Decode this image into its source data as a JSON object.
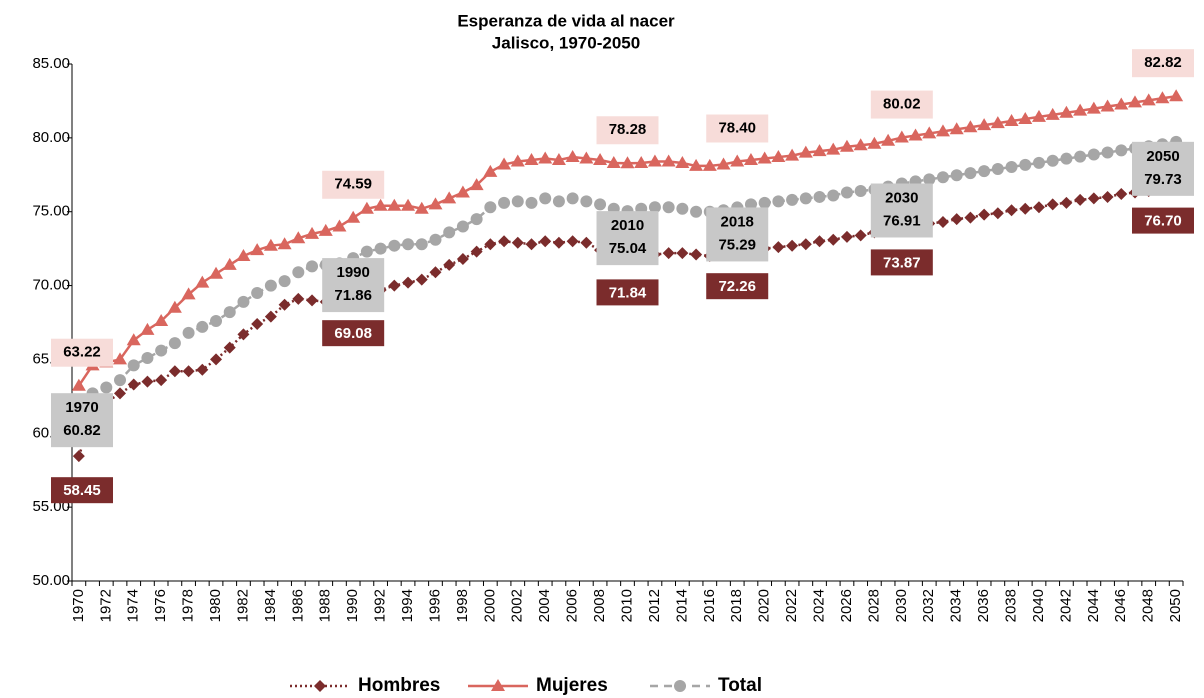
{
  "chart_data": {
    "type": "line",
    "title": "Esperanza de vida al nacer",
    "subtitle": "Jalisco, 1970-2050",
    "categories": [
      "1970",
      null,
      "1972",
      null,
      "1974",
      null,
      "1976",
      null,
      "1978",
      null,
      "1980",
      null,
      "1982",
      null,
      "1984",
      null,
      "1986",
      null,
      "1988",
      null,
      "1990",
      null,
      "1992",
      null,
      "1994",
      null,
      "1996",
      null,
      "1998",
      null,
      "2000",
      null,
      "2002",
      null,
      "2004",
      null,
      "2006",
      null,
      "2008",
      null,
      "2010",
      null,
      "2012",
      null,
      "2014",
      null,
      "2016",
      null,
      "2018",
      null,
      "2020",
      null,
      "2022",
      null,
      "2024",
      null,
      "2026",
      null,
      "2028",
      null,
      "2030",
      null,
      "2032",
      null,
      "2034",
      null,
      "2036",
      null,
      "2038",
      null,
      "2040",
      null,
      "2042",
      null,
      "2044",
      null,
      "2046",
      null,
      "2048",
      null,
      "2050"
    ],
    "ylim": [
      50,
      85
    ],
    "yticks": [
      {
        "value": 50,
        "label": "50.00"
      },
      {
        "value": 55,
        "label": "55.00"
      },
      {
        "value": 60,
        "label": "60.00"
      },
      {
        "value": 65,
        "label": "65.00"
      },
      {
        "value": 70,
        "label": "70.00"
      },
      {
        "value": 75,
        "label": "75.00"
      },
      {
        "value": 80,
        "label": "80.00"
      },
      {
        "value": 85,
        "label": "85.00"
      }
    ],
    "grid": false,
    "legend": "bottom",
    "series": [
      {
        "name": "Hombres",
        "color": "#7b2c2c",
        "marker": "diamond",
        "line": "dotted",
        "values": [
          58.45,
          61.3,
          62.1,
          62.7,
          63.3,
          63.5,
          63.6,
          64.2,
          64.2,
          64.3,
          65.0,
          65.8,
          66.7,
          67.4,
          67.9,
          68.7,
          69.1,
          69.0,
          68.9,
          68.9,
          69.08,
          69.6,
          69.7,
          70.0,
          70.2,
          70.4,
          70.9,
          71.4,
          71.8,
          72.3,
          72.8,
          73.0,
          72.9,
          72.8,
          73.0,
          72.9,
          73.0,
          72.9,
          72.4,
          72.0,
          71.84,
          72.0,
          72.1,
          72.2,
          72.2,
          72.1,
          72.0,
          72.1,
          72.26,
          72.4,
          72.5,
          72.6,
          72.7,
          72.8,
          73.0,
          73.1,
          73.3,
          73.4,
          73.6,
          73.7,
          73.87,
          74.0,
          74.2,
          74.3,
          74.5,
          74.6,
          74.8,
          74.9,
          75.1,
          75.2,
          75.3,
          75.5,
          75.6,
          75.8,
          75.9,
          76.0,
          76.2,
          76.3,
          76.4,
          76.6,
          76.7
        ],
        "value_labels": [
          "58.45",
          null,
          null,
          null,
          null,
          null,
          null,
          null,
          null,
          null,
          null,
          null,
          null,
          null,
          null,
          null,
          null,
          null,
          null,
          null,
          "69.08",
          null,
          null,
          null,
          null,
          null,
          null,
          null,
          null,
          null,
          null,
          null,
          null,
          null,
          null,
          null,
          null,
          null,
          null,
          null,
          "71.84",
          null,
          null,
          null,
          null,
          null,
          null,
          null,
          "72.26",
          null,
          null,
          null,
          null,
          null,
          null,
          null,
          null,
          null,
          null,
          null,
          "73.87",
          null,
          null,
          null,
          null,
          null,
          null,
          null,
          null,
          null,
          null,
          null,
          null,
          null,
          null,
          null,
          null,
          null,
          null,
          null,
          "76.70"
        ]
      },
      {
        "name": "Mujeres",
        "color": "#d9665e",
        "marker": "triangle",
        "line": "solid",
        "values": [
          63.22,
          64.6,
          64.8,
          65.0,
          66.3,
          67.0,
          67.6,
          68.5,
          69.4,
          70.2,
          70.8,
          71.4,
          72.0,
          72.4,
          72.7,
          72.8,
          73.2,
          73.5,
          73.7,
          74.0,
          74.59,
          75.2,
          75.4,
          75.4,
          75.4,
          75.2,
          75.5,
          75.9,
          76.3,
          76.8,
          77.7,
          78.2,
          78.4,
          78.5,
          78.6,
          78.5,
          78.7,
          78.6,
          78.5,
          78.3,
          78.28,
          78.3,
          78.4,
          78.4,
          78.3,
          78.1,
          78.1,
          78.2,
          78.4,
          78.5,
          78.6,
          78.7,
          78.8,
          79.0,
          79.1,
          79.2,
          79.4,
          79.5,
          79.6,
          79.8,
          80.02,
          80.16,
          80.3,
          80.44,
          80.58,
          80.72,
          80.86,
          81.0,
          81.14,
          81.28,
          81.42,
          81.56,
          81.7,
          81.84,
          81.98,
          82.12,
          82.26,
          82.4,
          82.54,
          82.68,
          82.82
        ],
        "value_labels": [
          "63.22",
          null,
          null,
          null,
          null,
          null,
          null,
          null,
          null,
          null,
          null,
          null,
          null,
          null,
          null,
          null,
          null,
          null,
          null,
          null,
          "74.59",
          null,
          null,
          null,
          null,
          null,
          null,
          null,
          null,
          null,
          null,
          null,
          null,
          null,
          null,
          null,
          null,
          null,
          null,
          null,
          "78.28",
          null,
          null,
          null,
          null,
          null,
          null,
          null,
          "78.40",
          null,
          null,
          null,
          null,
          null,
          null,
          null,
          null,
          null,
          null,
          null,
          "80.02",
          null,
          null,
          null,
          null,
          null,
          null,
          null,
          null,
          null,
          null,
          null,
          null,
          null,
          null,
          null,
          null,
          null,
          null,
          null,
          "82.82"
        ]
      },
      {
        "name": "Total",
        "color": "#a6a6a6",
        "marker": "circle",
        "line": "dashed",
        "values": [
          60.82,
          62.7,
          63.1,
          63.6,
          64.6,
          65.1,
          65.6,
          66.1,
          66.8,
          67.2,
          67.6,
          68.2,
          68.9,
          69.5,
          70.0,
          70.3,
          70.9,
          71.3,
          71.4,
          71.5,
          71.86,
          72.3,
          72.5,
          72.7,
          72.8,
          72.8,
          73.1,
          73.6,
          74.0,
          74.5,
          75.3,
          75.6,
          75.7,
          75.6,
          75.9,
          75.7,
          75.9,
          75.7,
          75.5,
          75.2,
          75.04,
          75.2,
          75.3,
          75.3,
          75.2,
          75.0,
          75.0,
          75.1,
          75.29,
          75.5,
          75.6,
          75.7,
          75.8,
          75.9,
          76.0,
          76.1,
          76.3,
          76.4,
          76.5,
          76.7,
          76.91,
          77.05,
          77.19,
          77.33,
          77.47,
          77.61,
          77.75,
          77.89,
          78.03,
          78.17,
          78.31,
          78.45,
          78.59,
          78.73,
          78.87,
          79.01,
          79.15,
          79.29,
          79.43,
          79.57,
          79.73
        ],
        "value_labels": [
          "60.82",
          null,
          null,
          null,
          null,
          null,
          null,
          null,
          null,
          null,
          null,
          null,
          null,
          null,
          null,
          null,
          null,
          null,
          null,
          null,
          "71.86",
          null,
          null,
          null,
          null,
          null,
          null,
          null,
          null,
          null,
          null,
          null,
          null,
          null,
          null,
          null,
          null,
          null,
          null,
          null,
          "75.04",
          null,
          null,
          null,
          null,
          null,
          null,
          null,
          "75.29",
          null,
          null,
          null,
          null,
          null,
          null,
          null,
          null,
          null,
          null,
          null,
          "76.91",
          null,
          null,
          null,
          null,
          null,
          null,
          null,
          null,
          null,
          null,
          null,
          null,
          null,
          null,
          null,
          null,
          null,
          null,
          null,
          "79.73"
        ]
      }
    ]
  }
}
